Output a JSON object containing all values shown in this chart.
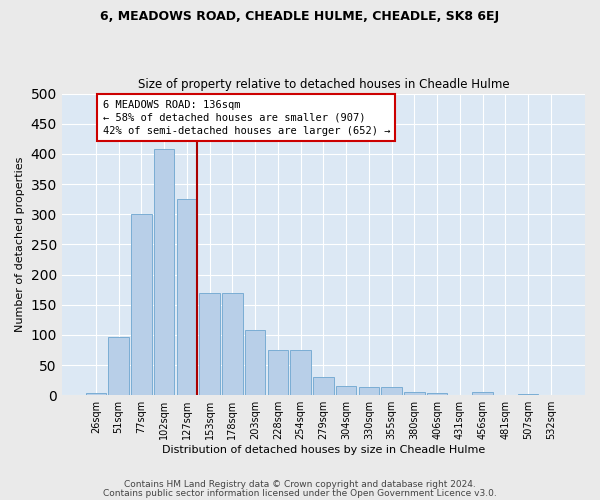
{
  "title1": "6, MEADOWS ROAD, CHEADLE HULME, CHEADLE, SK8 6EJ",
  "title2": "Size of property relative to detached houses in Cheadle Hulme",
  "xlabel": "Distribution of detached houses by size in Cheadle Hulme",
  "ylabel": "Number of detached properties",
  "bar_labels": [
    "26sqm",
    "51sqm",
    "77sqm",
    "102sqm",
    "127sqm",
    "153sqm",
    "178sqm",
    "203sqm",
    "228sqm",
    "254sqm",
    "279sqm",
    "304sqm",
    "330sqm",
    "355sqm",
    "380sqm",
    "406sqm",
    "431sqm",
    "456sqm",
    "481sqm",
    "507sqm",
    "532sqm"
  ],
  "bar_values": [
    3,
    97,
    300,
    408,
    325,
    170,
    170,
    108,
    75,
    75,
    30,
    16,
    14,
    13,
    5,
    3,
    1,
    5,
    1,
    2,
    1
  ],
  "bar_color": "#b8cfe8",
  "bar_edge_color": "#7aadd4",
  "annotation_title": "6 MEADOWS ROAD: 136sqm",
  "annotation_line1": "← 58% of detached houses are smaller (907)",
  "annotation_line2": "42% of semi-detached houses are larger (652) →",
  "vline_color": "#aa0000",
  "bg_color": "#dce8f4",
  "fig_bg_color": "#eaeaea",
  "footer1": "Contains HM Land Registry data © Crown copyright and database right 2024.",
  "footer2": "Contains public sector information licensed under the Open Government Licence v3.0.",
  "ylim": [
    0,
    500
  ],
  "yticks": [
    0,
    50,
    100,
    150,
    200,
    250,
    300,
    350,
    400,
    450,
    500
  ],
  "grid_color": "#ffffff",
  "property_sqm": 136
}
